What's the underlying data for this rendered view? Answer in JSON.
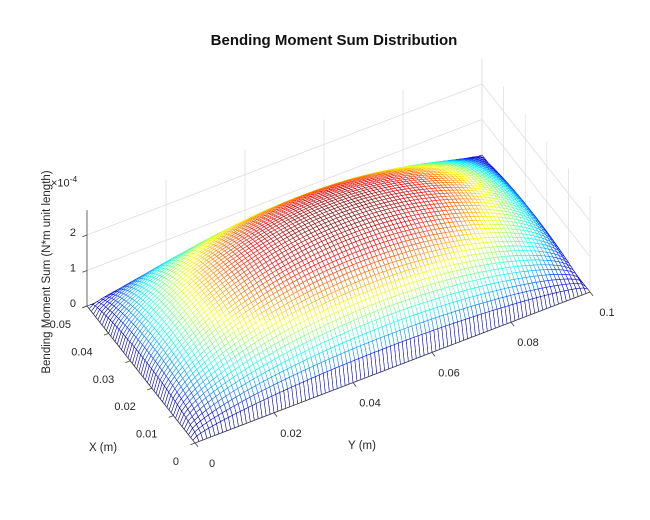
{
  "figure": {
    "background_color": "#ffffff"
  },
  "chart_data": {
    "type": "surface",
    "title": "Bending Moment Sum Distribution",
    "xlabel": "X (m)",
    "ylabel": "Y (m)",
    "zlabel": "Bending Moment Sum (N*m unit length)",
    "z_scale_prefix": "×10",
    "z_scale_exponent": "-4",
    "xlim": [
      0,
      0.05
    ],
    "ylim": [
      0,
      0.1
    ],
    "zlim": [
      0,
      0.00027
    ],
    "x_ticks": {
      "values": [
        0,
        0.01,
        0.02,
        0.03,
        0.04,
        0.05
      ],
      "labels": [
        "0",
        "0.01",
        "0.02",
        "0.03",
        "0.04",
        "0.05"
      ]
    },
    "y_ticks": {
      "values": [
        0,
        0.02,
        0.04,
        0.06,
        0.08,
        0.1
      ],
      "labels": [
        "0",
        "0.02",
        "0.04",
        "0.06",
        "0.08",
        "0.1"
      ]
    },
    "z_ticks": {
      "values": [
        0,
        0.0001,
        0.0002
      ],
      "labels": [
        "0",
        "1",
        "2"
      ],
      "multiplier": 0.0001
    },
    "grid": true,
    "legend": "none",
    "view": {
      "azimuth": -37.5,
      "elevation": 30,
      "projection": "orthographic"
    },
    "surface": {
      "style": "mesh-wireframe-white-faces",
      "colormap": "jet",
      "z_peak": 0.00024,
      "boundary_value": 0,
      "shape_model": "z = z_peak * (sin(pi*x/0.05) * sin(pi*y/0.1))^0.55",
      "shape_exponent": 0.55,
      "grid_divisions_x": 50,
      "grid_divisions_y": 100,
      "sample_x": [
        0,
        0.01,
        0.02,
        0.03,
        0.04,
        0.05
      ],
      "sample_y": [
        0,
        0.01,
        0.02,
        0.03,
        0.04,
        0.05,
        0.06,
        0.07,
        0.08,
        0.09,
        0.1
      ],
      "z_samples_times_1e4": [
        [
          0,
          0,
          0,
          0,
          0,
          0,
          0,
          0,
          0,
          0,
          0
        ],
        [
          0,
          0.94,
          1.34,
          1.6,
          1.74,
          1.79,
          1.74,
          1.6,
          1.34,
          0.94,
          0
        ],
        [
          0,
          1.22,
          1.74,
          2.08,
          2.27,
          2.34,
          2.27,
          2.08,
          1.74,
          1.22,
          0
        ],
        [
          0,
          1.22,
          1.74,
          2.08,
          2.27,
          2.34,
          2.27,
          2.08,
          1.74,
          1.22,
          0
        ],
        [
          0,
          0.94,
          1.34,
          1.6,
          1.74,
          1.79,
          1.74,
          1.6,
          1.34,
          0.94,
          0
        ],
        [
          0,
          0,
          0,
          0,
          0,
          0,
          0,
          0,
          0,
          0,
          0
        ]
      ]
    },
    "colors": {
      "axis": "#424242",
      "grid_line": "#dcdcdc",
      "tick_text": "#262626",
      "colormap_low": "#00008f",
      "colormap_high": "#800000",
      "face": "#ffffff"
    }
  }
}
